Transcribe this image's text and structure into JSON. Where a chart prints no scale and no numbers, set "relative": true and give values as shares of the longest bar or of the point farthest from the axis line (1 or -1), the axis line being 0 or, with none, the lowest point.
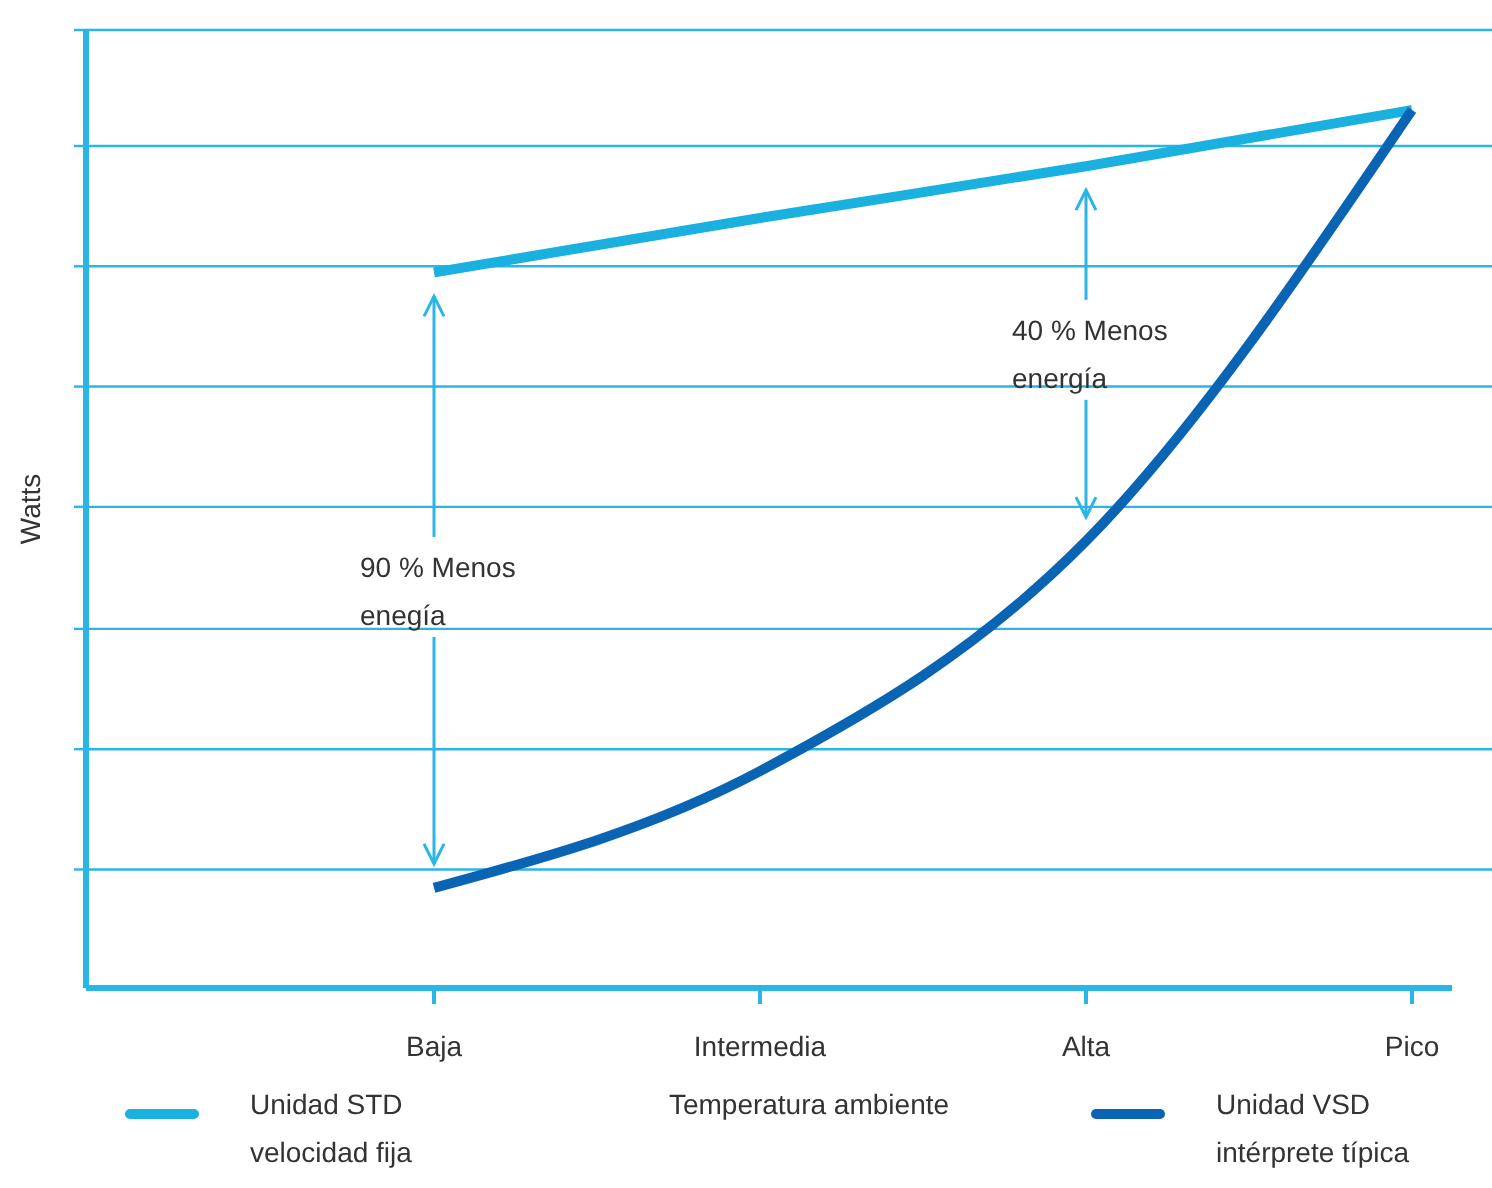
{
  "chart_data": {
    "type": "line",
    "relative": true,
    "ylabel": "Watts",
    "xlabel": "Temperatura ambiente",
    "categories": [
      "Baja",
      "Intermedia",
      "Alta",
      "Pico"
    ],
    "series": [
      {
        "name": "Unidad STD velocidad fija",
        "color": "#1ab0e0",
        "values": [
          0.815,
          0.877,
          0.936,
          1
        ]
      },
      {
        "name": "Unidad VSD intérprete típica",
        "color": "#0a64b4",
        "values": [
          0.114,
          0.247,
          0.509,
          1
        ]
      }
    ],
    "annotations": [
      "90 % Menos enegía",
      "40 % Menos energía"
    ],
    "ref_lines": [
      {
        "axis": "y",
        "value": 0.135,
        "color": "#29b5e5"
      },
      {
        "axis": "y",
        "value": 0.272,
        "color": "#29b5e5"
      },
      {
        "axis": "y",
        "value": 0.409,
        "color": "#29b5e5"
      },
      {
        "axis": "y",
        "value": 0.548,
        "color": "#29b5e5"
      },
      {
        "axis": "y",
        "value": 0.685,
        "color": "#29b5e5"
      },
      {
        "axis": "y",
        "value": 0.822,
        "color": "#29b5e5"
      },
      {
        "axis": "y",
        "value": 0.959,
        "color": "#29b5e5"
      }
    ],
    "legend": "bottom",
    "marker": "none",
    "line_style": "solid"
  }
}
